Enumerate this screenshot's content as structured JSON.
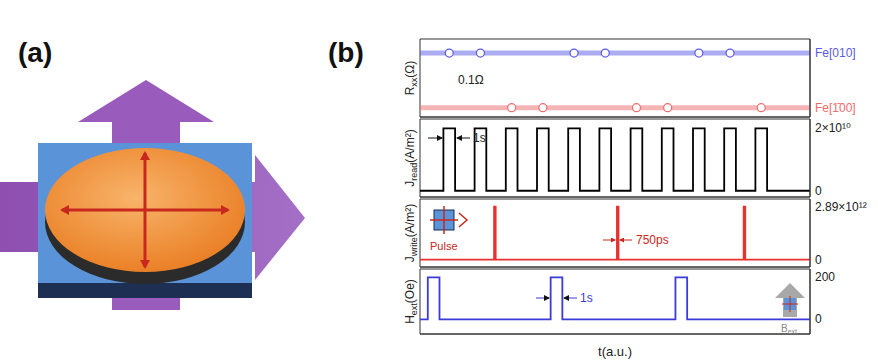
{
  "panel_labels": [
    "(a)",
    "(b)"
  ],
  "chart_data": [
    {
      "type": "scatter",
      "ylabel": {
        "text": "R",
        "sub": "xx",
        "rest": "(Ω)"
      },
      "xlim": [
        0,
        100
      ],
      "ylim": [
        0,
        1
      ],
      "tick_labels": "y",
      "series": [
        {
          "name": "Fe[010]",
          "color": "#5a5ae6",
          "level": 0.82,
          "marker": "circle",
          "x": [
            7.5,
            15.5,
            39.5,
            47.5,
            71.5,
            79.5
          ],
          "values": [
            0.82,
            0.82,
            0.82,
            0.82,
            0.82,
            0.82
          ]
        },
        {
          "name": "Fe[1̄00]",
          "color": "#ee6b6b",
          "level": 0.12,
          "marker": "circle",
          "x": [
            23.5,
            31.5,
            55.5,
            63.5,
            87.5
          ],
          "values": [
            0.12,
            0.12,
            0.12,
            0.12,
            0.12
          ]
        }
      ],
      "annotations": [
        {
          "text": "0.1Ω"
        }
      ]
    },
    {
      "type": "line",
      "ylabel": {
        "text": "J",
        "sub": "read",
        "rest": "(A/m²)"
      },
      "xlim": [
        0,
        100
      ],
      "ylim": [
        -2000000000.0,
        23000000000.0
      ],
      "yticks": [
        0,
        {
          "value": 20000000000.0,
          "label": "2×10¹⁰"
        }
      ],
      "tick_labels": "y",
      "series": [
        {
          "color": "#000000",
          "x": [
            0,
            6,
            6,
            9,
            9,
            14,
            14,
            17,
            17,
            22,
            22,
            25,
            25,
            30,
            30,
            33,
            33,
            38,
            38,
            41,
            41,
            46,
            46,
            49,
            49,
            54,
            54,
            57,
            57,
            62,
            62,
            65,
            65,
            70,
            70,
            73,
            73,
            78,
            78,
            81,
            81,
            86,
            86,
            89,
            89,
            100
          ],
          "values": [
            0,
            0,
            20000000000.0,
            20000000000.0,
            0,
            0,
            20000000000.0,
            20000000000.0,
            0,
            0,
            20000000000.0,
            20000000000.0,
            0,
            0,
            20000000000.0,
            20000000000.0,
            0,
            0,
            20000000000.0,
            20000000000.0,
            0,
            0,
            20000000000.0,
            20000000000.0,
            0,
            0,
            20000000000.0,
            20000000000.0,
            0,
            0,
            20000000000.0,
            20000000000.0,
            0,
            0,
            20000000000.0,
            20000000000.0,
            0,
            0,
            20000000000.0,
            20000000000.0,
            0,
            0,
            20000000000.0,
            20000000000.0,
            0,
            0
          ]
        }
      ],
      "annotations": [
        {
          "text": "1s"
        }
      ]
    },
    {
      "type": "line",
      "ylabel": {
        "text": "J",
        "sub": "write",
        "rest": "(A/m²)"
      },
      "xlim": [
        0,
        100
      ],
      "ylim": [
        -400000000000.0,
        3300000000000.0
      ],
      "yticks": [
        0,
        {
          "value": 2890000000000.0,
          "label": "2.89×10¹²"
        }
      ],
      "tick_labels": "y",
      "series": [
        {
          "color": "#e8302f",
          "x": [
            0,
            19,
            19,
            19.4,
            19.4,
            50.5,
            50.5,
            50.9,
            50.9,
            83,
            83,
            83.4,
            83.4,
            100
          ],
          "values": [
            0,
            0,
            2890000000000.0,
            2890000000000.0,
            0,
            0,
            2890000000000.0,
            2890000000000.0,
            0,
            0,
            2890000000000.0,
            2890000000000.0,
            0,
            0
          ]
        }
      ],
      "annotations": [
        {
          "text": "750ps"
        },
        {
          "text": "Pulse"
        }
      ]
    },
    {
      "type": "line",
      "ylabel": {
        "text": "H",
        "sub": "ext",
        "rest": "(Oe)"
      },
      "xlabel": "t(a.u.)",
      "xlim": [
        0,
        100
      ],
      "ylim": [
        -70,
        240
      ],
      "yticks": [
        0,
        200
      ],
      "tick_labels": "y",
      "series": [
        {
          "color": "#3b3bd9",
          "x": [
            0,
            2,
            2,
            5,
            5,
            33.5,
            33.5,
            36.5,
            36.5,
            65.5,
            65.5,
            68.5,
            68.5,
            100
          ],
          "values": [
            0,
            0,
            200,
            200,
            0,
            0,
            200,
            200,
            0,
            0,
            200,
            200,
            0,
            0
          ]
        }
      ],
      "annotations": [
        {
          "text": "1s"
        },
        {
          "text": "B",
          "sub": "ext"
        }
      ]
    }
  ]
}
